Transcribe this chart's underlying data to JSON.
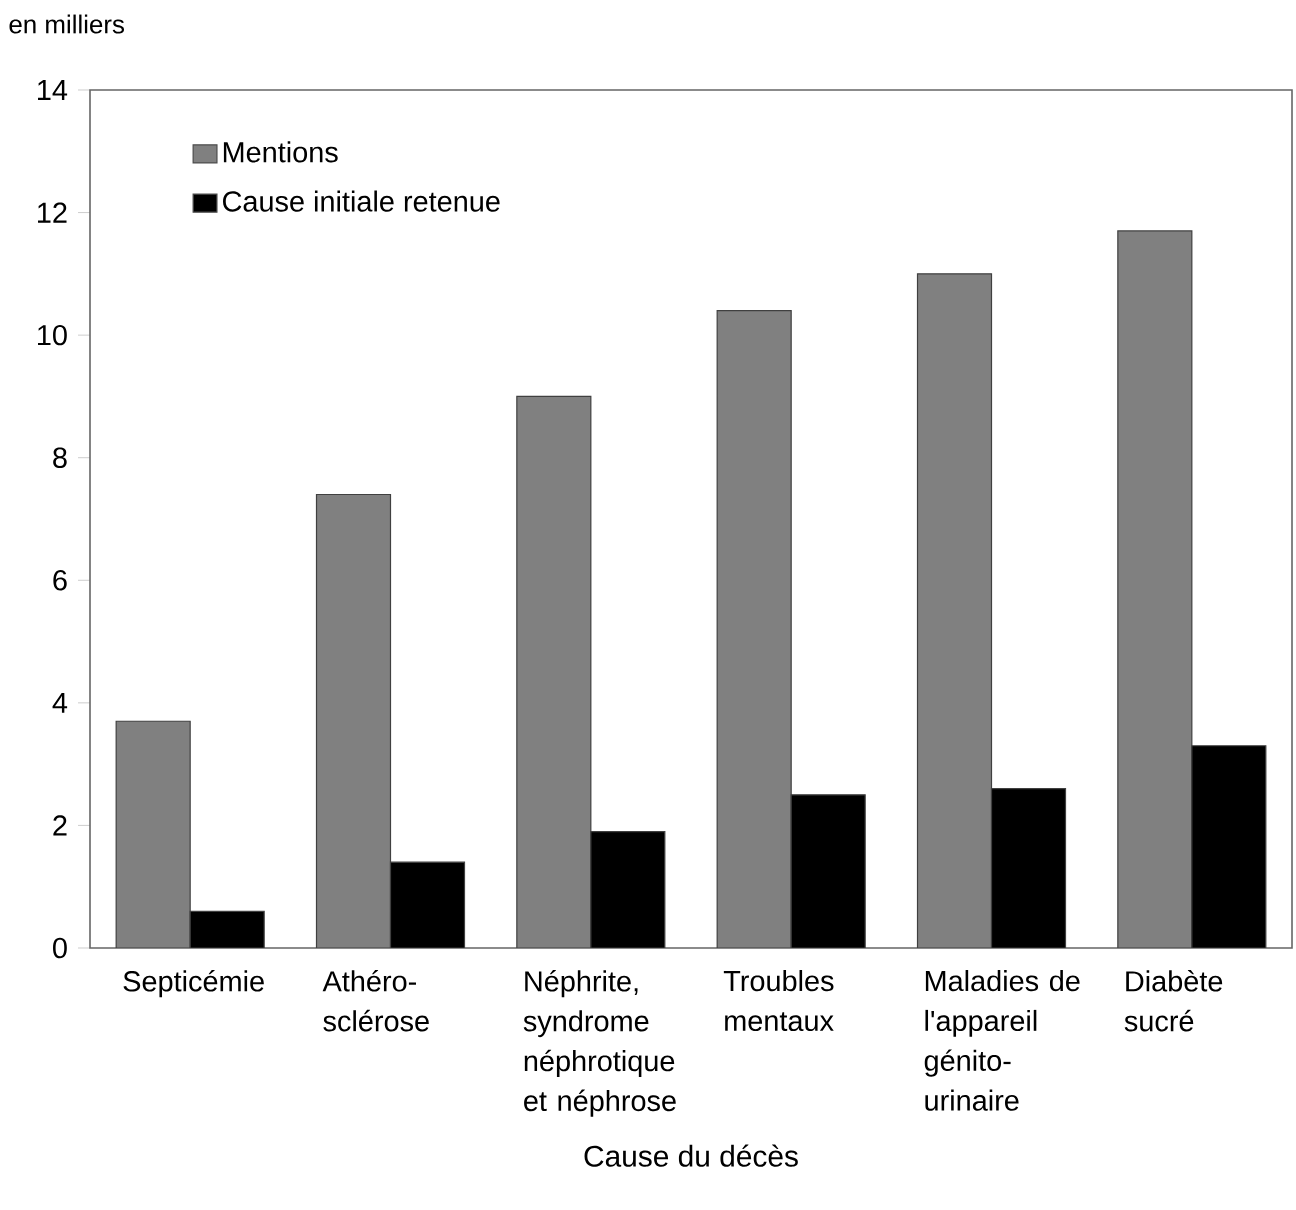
{
  "chart_data": {
    "type": "bar",
    "ylabel": "en milliers",
    "xlabel": "Cause du décès",
    "categories": [
      "Septicémie",
      "Athéro-sclérose",
      "Néphrite, syndrome néphrotique et néphrose",
      "Troubles mentaux",
      "Maladies de l'appareil génito-urinaire",
      "Diabète sucré"
    ],
    "series": [
      {
        "name": "Mentions",
        "color": "#808080",
        "values": [
          3.7,
          7.4,
          9.0,
          10.4,
          11.0,
          11.7
        ]
      },
      {
        "name": "Cause initiale retenue",
        "color": "#000000",
        "values": [
          0.6,
          1.4,
          1.9,
          2.5,
          2.6,
          3.3
        ]
      }
    ],
    "ylim": [
      0,
      14
    ],
    "yticks": [
      0,
      2,
      4,
      6,
      8,
      10,
      12,
      14
    ],
    "legend": "top left"
  }
}
